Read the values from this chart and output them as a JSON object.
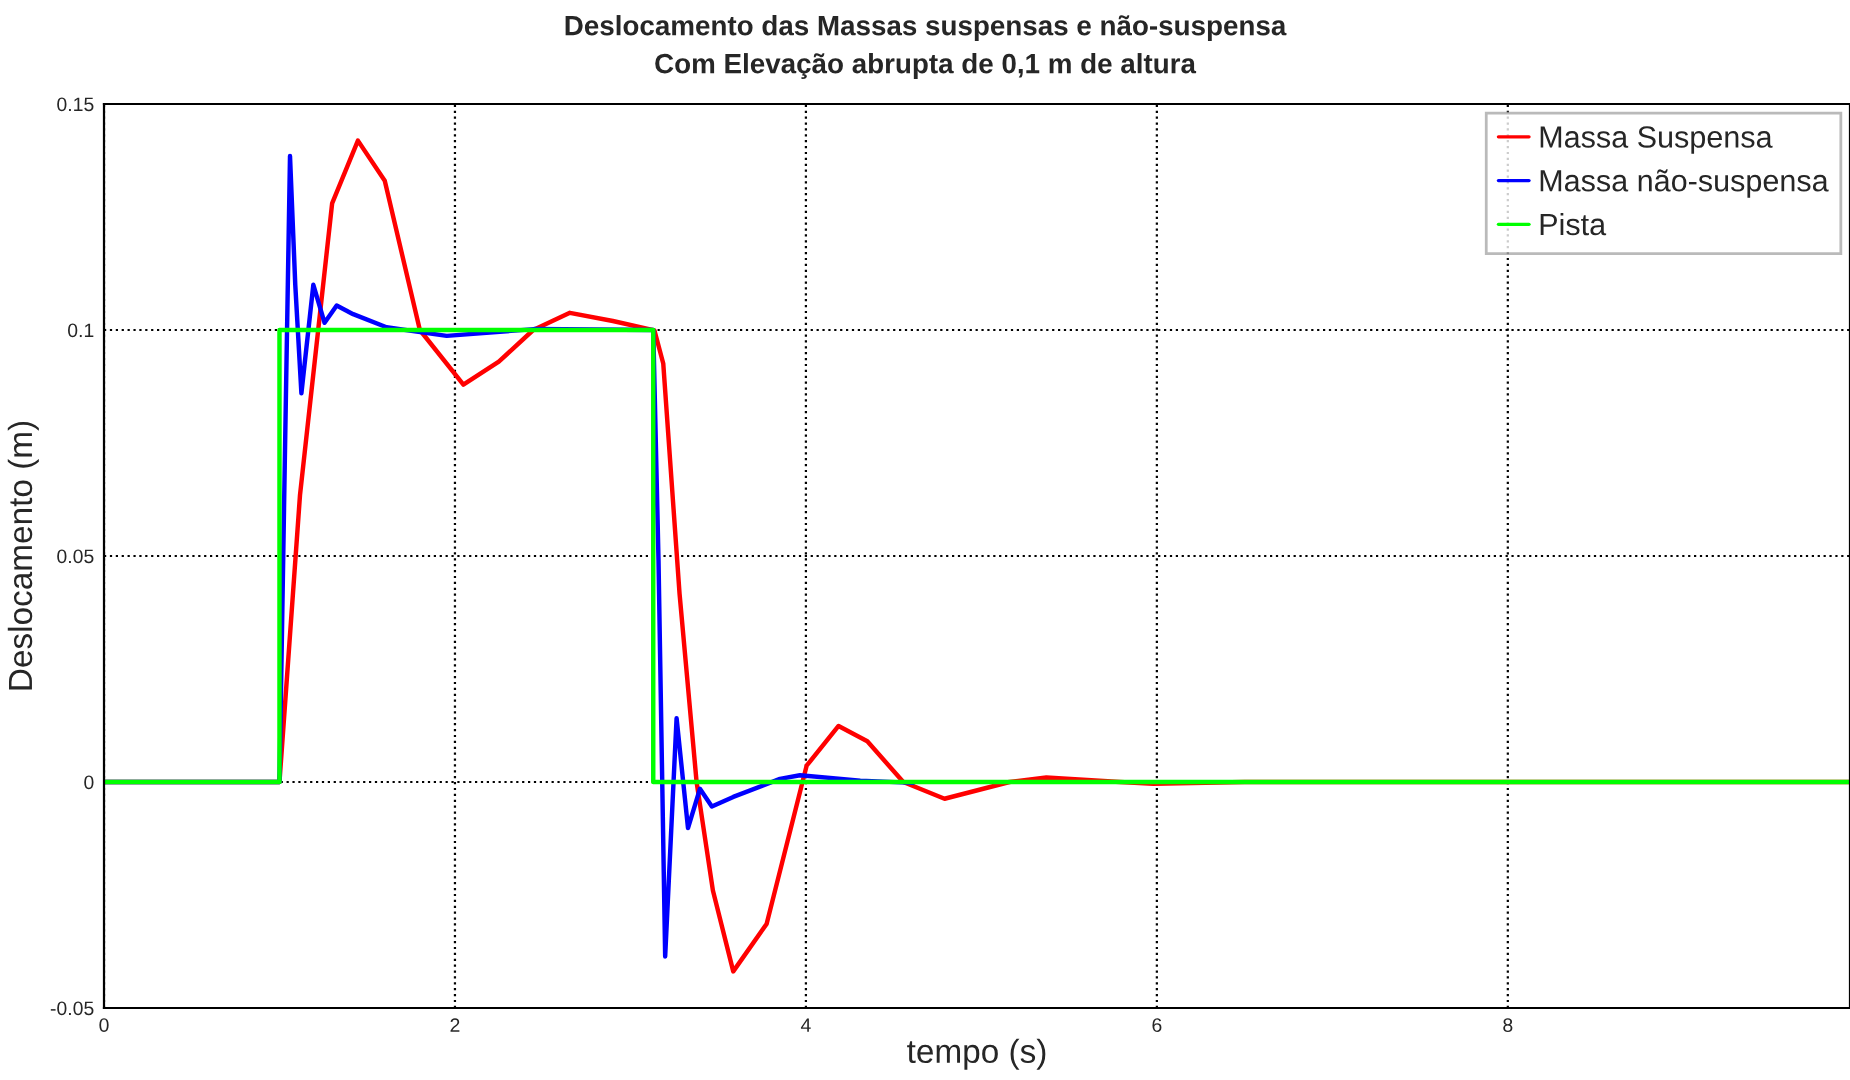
{
  "chart_data": {
    "type": "line",
    "title": "Deslocamento das Massas suspensas e não-suspensa",
    "subtitle": "Com Elevação abrupta de 0,1 m de altura",
    "xlabel": "tempo (s)",
    "ylabel": "Deslocamento (m)",
    "xlim": [
      0,
      9.95
    ],
    "ylim": [
      -0.05,
      0.15
    ],
    "xticks": [
      0,
      2,
      4,
      6,
      8
    ],
    "yticks": [
      -0.05,
      0,
      0.05,
      0.1,
      0.15
    ],
    "grid": true,
    "legend": "top right",
    "line_style": "solid",
    "marker": "none",
    "series": [
      {
        "name": "Massa Suspensa",
        "color": "#ff0000",
        "x": [
          0,
          1.0,
          1.117,
          1.3,
          1.447,
          1.6,
          1.8,
          2.048,
          2.25,
          2.446,
          2.655,
          2.9,
          3.137,
          3.187,
          3.28,
          3.377,
          3.47,
          3.586,
          3.776,
          4.004,
          4.186,
          4.35,
          4.555,
          4.79,
          5.16,
          5.37,
          5.79,
          5.98,
          6.5,
          9.95
        ],
        "values": [
          0,
          0,
          0.0635,
          0.128,
          0.1419,
          0.133,
          0.1,
          0.0879,
          0.093,
          0.1,
          0.1038,
          0.102,
          0.0999,
          0.0926,
          0.0416,
          0,
          -0.024,
          -0.0419,
          -0.0314,
          0.0036,
          0.0124,
          0.009,
          0,
          -0.0037,
          0,
          0.001,
          0,
          -0.0004,
          0,
          0
        ]
      },
      {
        "name": "Massa não-suspensa",
        "color": "#0000ff",
        "x": [
          0,
          1.0,
          1.03,
          1.06,
          1.09,
          1.125,
          1.193,
          1.257,
          1.326,
          1.42,
          1.61,
          1.953,
          2.45,
          3.13,
          3.16,
          3.198,
          3.263,
          3.328,
          3.396,
          3.464,
          3.586,
          3.852,
          3.966,
          4.31,
          4.61
        ],
        "values": [
          0,
          0,
          0.07,
          0.1385,
          0.11,
          0.086,
          0.11,
          0.1016,
          0.1054,
          0.1035,
          0.1006,
          0.0987,
          0.1002,
          0.1,
          0.049,
          -0.0386,
          0.0141,
          -0.0102,
          -0.0015,
          -0.0054,
          -0.0033,
          0.0007,
          0.0015,
          0.0003,
          -0.0002
        ]
      },
      {
        "name": "Pista",
        "color": "#00ff00",
        "x": [
          0,
          1.0,
          1.0,
          3.13,
          3.13,
          9.95
        ],
        "values": [
          0,
          0,
          0.1,
          0.1,
          0,
          0
        ]
      }
    ]
  }
}
